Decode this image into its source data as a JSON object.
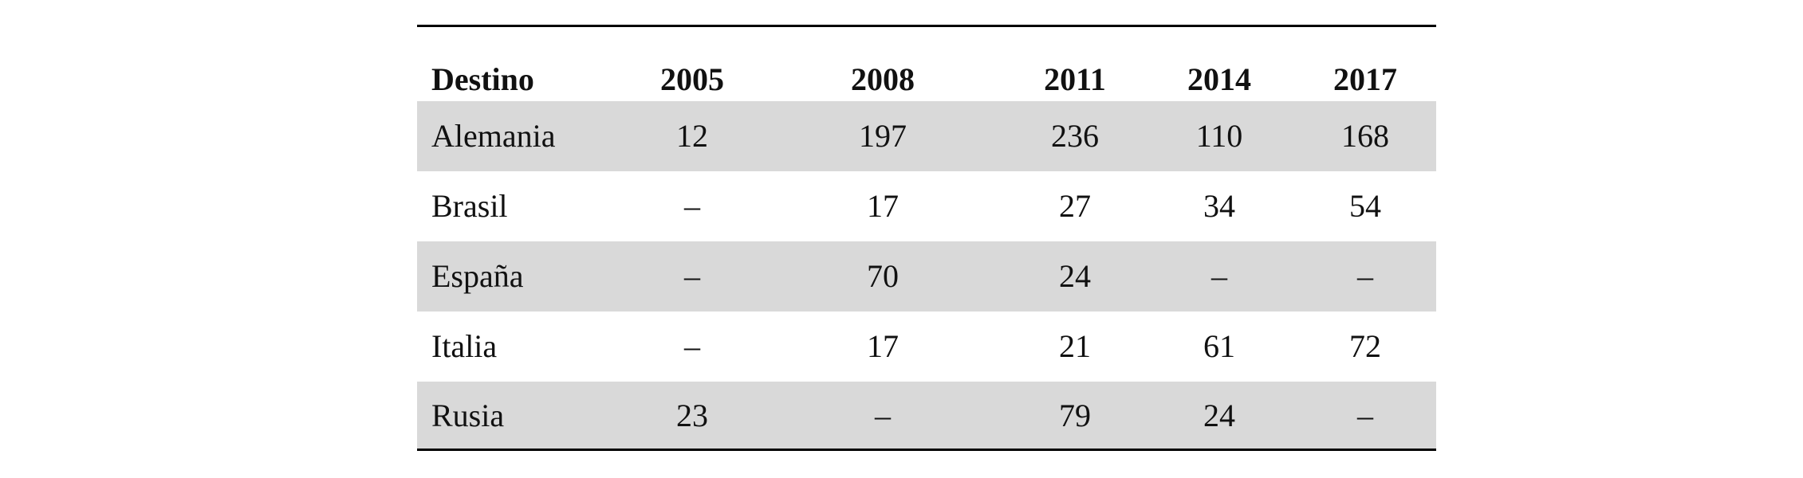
{
  "table": {
    "header": [
      "Destino",
      "2005",
      "2008",
      "2011",
      "2014",
      "2017"
    ],
    "rows": [
      [
        "Alemania",
        12,
        197,
        236,
        110,
        168
      ],
      [
        "Brasil",
        "–",
        17,
        27,
        34,
        54
      ],
      [
        "España",
        "–",
        70,
        24,
        "–",
        "–"
      ],
      [
        "Italia",
        "–",
        17,
        21,
        61,
        72
      ],
      [
        "Rusia",
        23,
        "–",
        79,
        24,
        "–"
      ]
    ]
  }
}
